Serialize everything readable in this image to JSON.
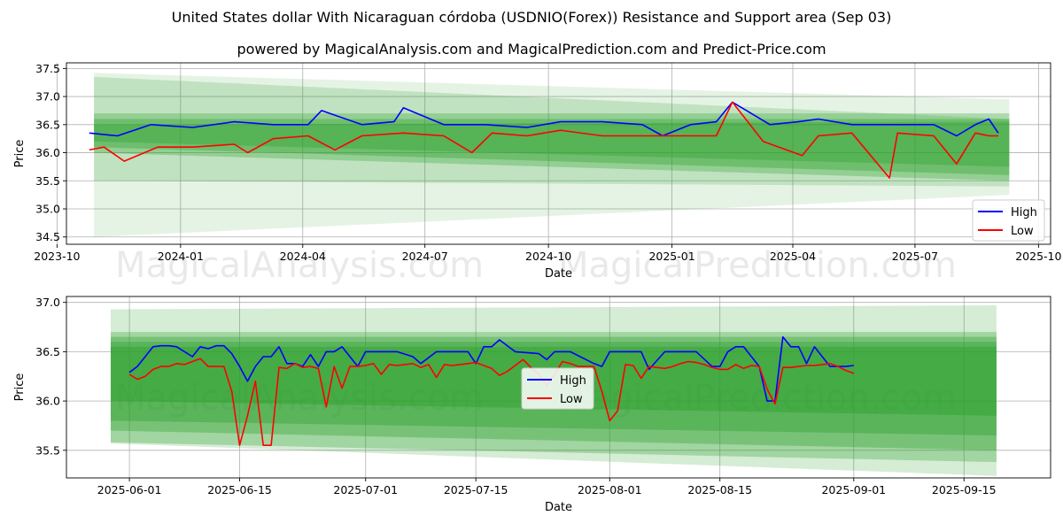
{
  "header": {
    "title": "United States dollar With Nicaraguan córdoba (USDNIO(Forex)) Resistance and Support area (Sep 03)",
    "subtitle": "powered by MagicalAnalysis.com and MagicalPrediction.com and Predict-Price.com"
  },
  "watermarks": [
    "MagicalAnalysis.com",
    "MagicalPrediction.com"
  ],
  "colors": {
    "high": "#0000ff",
    "low": "#ff0000",
    "band": "#2ca02c",
    "grid": "#b0b0b0"
  },
  "chart_data": [
    {
      "type": "line",
      "xlabel": "Date",
      "ylabel": "Price",
      "x_range": [
        "2023-10-08",
        "2025-10-10"
      ],
      "ylim": [
        34.37,
        37.6
      ],
      "x_ticks": [
        {
          "date": "2023-10-01",
          "label": "2023-10"
        },
        {
          "date": "2024-01-01",
          "label": "2024-01"
        },
        {
          "date": "2024-04-01",
          "label": "2024-04"
        },
        {
          "date": "2024-07-01",
          "label": "2024-07"
        },
        {
          "date": "2024-10-01",
          "label": "2024-10"
        },
        {
          "date": "2025-01-01",
          "label": "2025-01"
        },
        {
          "date": "2025-04-01",
          "label": "2025-04"
        },
        {
          "date": "2025-07-01",
          "label": "2025-07"
        },
        {
          "date": "2025-10-01",
          "label": "2025-10"
        }
      ],
      "y_ticks": [
        34.5,
        35.0,
        35.5,
        36.0,
        36.5,
        37.0,
        37.5
      ],
      "grid": true,
      "legend": {
        "position": "lower-right",
        "entries": [
          "High",
          "Low"
        ]
      },
      "series": [
        {
          "name": "High",
          "x": [
            "2023-10-25",
            "2023-11-15",
            "2023-12-10",
            "2024-01-10",
            "2024-02-10",
            "2024-03-10",
            "2024-04-05",
            "2024-04-15",
            "2024-05-15",
            "2024-06-08",
            "2024-06-15",
            "2024-07-15",
            "2024-08-15",
            "2024-09-15",
            "2024-10-10",
            "2024-11-10",
            "2024-12-10",
            "2024-12-25",
            "2025-01-15",
            "2025-02-03",
            "2025-02-15",
            "2025-03-15",
            "2025-04-05",
            "2025-04-20",
            "2025-05-15",
            "2025-06-15",
            "2025-07-15",
            "2025-08-01",
            "2025-08-15",
            "2025-08-25",
            "2025-09-01"
          ],
          "values": [
            36.35,
            36.3,
            36.5,
            36.45,
            36.55,
            36.5,
            36.5,
            36.75,
            36.5,
            36.55,
            36.8,
            36.5,
            36.5,
            36.45,
            36.55,
            36.55,
            36.5,
            36.3,
            36.5,
            36.55,
            36.9,
            36.5,
            36.55,
            36.6,
            36.5,
            36.5,
            36.5,
            36.3,
            36.5,
            36.6,
            36.35
          ]
        },
        {
          "name": "Low",
          "x": [
            "2023-10-25",
            "2023-11-05",
            "2023-11-20",
            "2023-12-15",
            "2024-01-10",
            "2024-02-10",
            "2024-02-20",
            "2024-03-10",
            "2024-04-05",
            "2024-04-25",
            "2024-05-15",
            "2024-06-15",
            "2024-07-15",
            "2024-08-05",
            "2024-08-20",
            "2024-09-15",
            "2024-10-10",
            "2024-11-10",
            "2024-12-10",
            "2025-01-15",
            "2025-02-03",
            "2025-02-15",
            "2025-03-10",
            "2025-04-08",
            "2025-04-20",
            "2025-05-15",
            "2025-06-12",
            "2025-06-18",
            "2025-07-15",
            "2025-08-01",
            "2025-08-15",
            "2025-08-25",
            "2025-09-01"
          ],
          "values": [
            36.05,
            36.1,
            35.85,
            36.1,
            36.1,
            36.15,
            36.0,
            36.25,
            36.3,
            36.05,
            36.3,
            36.35,
            36.3,
            36.0,
            36.35,
            36.3,
            36.4,
            36.3,
            36.3,
            36.3,
            36.3,
            36.9,
            36.2,
            35.95,
            36.3,
            36.35,
            35.55,
            36.35,
            36.3,
            35.8,
            36.35,
            36.3,
            36.3
          ]
        }
      ]
    },
    {
      "type": "line",
      "xlabel": "Date",
      "ylabel": "Price",
      "x_range": [
        "2025-05-24",
        "2025-09-26"
      ],
      "ylim": [
        35.22,
        37.06
      ],
      "x_ticks": [
        {
          "date": "2025-06-01",
          "label": "2025-06-01"
        },
        {
          "date": "2025-06-15",
          "label": "2025-06-15"
        },
        {
          "date": "2025-07-01",
          "label": "2025-07-01"
        },
        {
          "date": "2025-07-15",
          "label": "2025-07-15"
        },
        {
          "date": "2025-08-01",
          "label": "2025-08-01"
        },
        {
          "date": "2025-08-15",
          "label": "2025-08-15"
        },
        {
          "date": "2025-09-01",
          "label": "2025-09-01"
        },
        {
          "date": "2025-09-15",
          "label": "2025-09-15"
        }
      ],
      "y_ticks": [
        35.5,
        36.0,
        36.5,
        37.0
      ],
      "grid": true,
      "legend": {
        "position": "center",
        "entries": [
          "High",
          "Low"
        ]
      },
      "series": [
        {
          "name": "High",
          "x": [
            "2025-06-01",
            "2025-06-02",
            "2025-06-03",
            "2025-06-04",
            "2025-06-05",
            "2025-06-06",
            "2025-06-07",
            "2025-06-09",
            "2025-06-10",
            "2025-06-11",
            "2025-06-12",
            "2025-06-13",
            "2025-06-14",
            "2025-06-15",
            "2025-06-16",
            "2025-06-17",
            "2025-06-18",
            "2025-06-19",
            "2025-06-20",
            "2025-06-21",
            "2025-06-22",
            "2025-06-23",
            "2025-06-24",
            "2025-06-25",
            "2025-06-26",
            "2025-06-27",
            "2025-06-28",
            "2025-06-29",
            "2025-06-30",
            "2025-07-01",
            "2025-07-03",
            "2025-07-05",
            "2025-07-07",
            "2025-07-08",
            "2025-07-10",
            "2025-07-12",
            "2025-07-13",
            "2025-07-14",
            "2025-07-15",
            "2025-07-16",
            "2025-07-17",
            "2025-07-18",
            "2025-07-20",
            "2025-07-23",
            "2025-07-24",
            "2025-07-25",
            "2025-07-26",
            "2025-07-27",
            "2025-07-30",
            "2025-07-31",
            "2025-08-01",
            "2025-08-02",
            "2025-08-05",
            "2025-08-06",
            "2025-08-08",
            "2025-08-10",
            "2025-08-12",
            "2025-08-14",
            "2025-08-15",
            "2025-08-16",
            "2025-08-17",
            "2025-08-18",
            "2025-08-20",
            "2025-08-21",
            "2025-08-22",
            "2025-08-23",
            "2025-08-24",
            "2025-08-25",
            "2025-08-26",
            "2025-08-27",
            "2025-08-28",
            "2025-08-29",
            "2025-08-30",
            "2025-08-31",
            "2025-09-01"
          ],
          "values": [
            36.29,
            36.35,
            36.45,
            36.55,
            36.56,
            36.56,
            36.55,
            36.45,
            36.55,
            36.53,
            36.56,
            36.56,
            36.48,
            36.35,
            36.2,
            36.35,
            36.45,
            36.45,
            36.55,
            36.38,
            36.38,
            36.35,
            36.47,
            36.35,
            36.5,
            36.5,
            36.55,
            36.45,
            36.35,
            36.5,
            36.5,
            36.5,
            36.45,
            36.38,
            36.5,
            36.5,
            36.5,
            36.5,
            36.38,
            36.55,
            36.55,
            36.62,
            36.5,
            36.48,
            36.42,
            36.5,
            36.5,
            36.5,
            36.38,
            36.35,
            36.5,
            36.5,
            36.5,
            36.32,
            36.5,
            36.5,
            36.5,
            36.35,
            36.35,
            36.5,
            36.55,
            36.55,
            36.35,
            36.0,
            36.0,
            36.65,
            36.55,
            36.55,
            36.38,
            36.55,
            36.45,
            36.35,
            36.35,
            36.35,
            36.36
          ],
          "note_x_only": ""
        },
        {
          "name": "Low",
          "x": [
            "2025-06-01",
            "2025-06-02",
            "2025-06-03",
            "2025-06-04",
            "2025-06-05",
            "2025-06-06",
            "2025-06-07",
            "2025-06-08",
            "2025-06-09",
            "2025-06-10",
            "2025-06-11",
            "2025-06-12",
            "2025-06-13",
            "2025-06-14",
            "2025-06-15",
            "2025-06-16",
            "2025-06-17",
            "2025-06-18",
            "2025-06-19",
            "2025-06-20",
            "2025-06-21",
            "2025-06-22",
            "2025-06-23",
            "2025-06-24",
            "2025-06-25",
            "2025-06-26",
            "2025-06-27",
            "2025-06-28",
            "2025-06-29",
            "2025-06-30",
            "2025-07-01",
            "2025-07-02",
            "2025-07-03",
            "2025-07-04",
            "2025-07-05",
            "2025-07-06",
            "2025-07-07",
            "2025-07-08",
            "2025-07-09",
            "2025-07-10",
            "2025-07-11",
            "2025-07-12",
            "2025-07-13",
            "2025-07-14",
            "2025-07-15",
            "2025-07-16",
            "2025-07-17",
            "2025-07-18",
            "2025-07-19",
            "2025-07-20",
            "2025-07-21",
            "2025-07-22",
            "2025-07-23",
            "2025-07-24",
            "2025-07-25",
            "2025-07-26",
            "2025-07-27",
            "2025-07-28",
            "2025-07-29",
            "2025-07-30",
            "2025-07-31",
            "2025-08-01",
            "2025-08-02",
            "2025-08-03",
            "2025-08-04",
            "2025-08-05",
            "2025-08-06",
            "2025-08-07",
            "2025-08-08",
            "2025-08-09",
            "2025-08-10",
            "2025-08-11",
            "2025-08-12",
            "2025-08-13",
            "2025-08-14",
            "2025-08-15",
            "2025-08-16",
            "2025-08-17",
            "2025-08-18",
            "2025-08-19",
            "2025-08-20",
            "2025-08-21",
            "2025-08-22",
            "2025-08-23",
            "2025-08-24",
            "2025-08-25",
            "2025-08-26",
            "2025-08-27",
            "2025-08-28",
            "2025-08-29",
            "2025-08-30",
            "2025-08-31",
            "2025-09-01"
          ],
          "values": [
            36.27,
            36.22,
            36.25,
            36.32,
            36.35,
            36.35,
            36.38,
            36.37,
            36.4,
            36.43,
            36.35,
            36.35,
            36.35,
            36.1,
            35.55,
            35.85,
            36.2,
            35.55,
            35.55,
            36.34,
            36.33,
            36.38,
            36.34,
            36.35,
            36.33,
            35.94,
            36.35,
            36.13,
            36.35,
            36.35,
            36.36,
            36.38,
            36.27,
            36.37,
            36.36,
            36.37,
            36.38,
            36.34,
            36.37,
            36.24,
            36.37,
            36.36,
            36.37,
            36.38,
            36.39,
            36.36,
            36.33,
            36.26,
            36.3,
            36.36,
            36.42,
            36.34,
            36.27,
            36.16,
            36.27,
            36.4,
            36.38,
            36.35,
            36.35,
            36.35,
            36.1,
            35.8,
            35.9,
            36.37,
            36.36,
            36.23,
            36.35,
            36.34,
            36.33,
            36.35,
            36.38,
            36.4,
            36.39,
            36.37,
            36.34,
            36.32,
            36.32,
            36.37,
            36.33,
            36.36,
            36.35,
            36.12,
            35.97,
            36.34,
            36.34,
            36.35,
            36.36,
            36.36,
            36.37,
            36.38,
            36.35,
            36.31,
            36.28
          ]
        }
      ]
    }
  ]
}
